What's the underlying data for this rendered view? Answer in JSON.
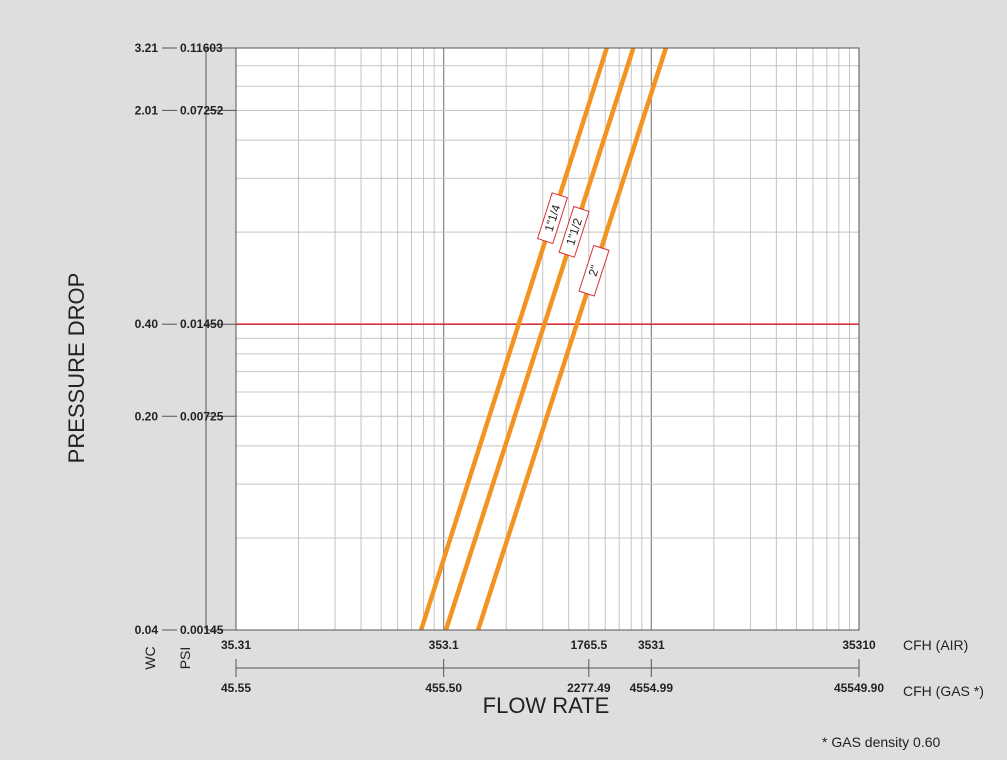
{
  "chart_data": {
    "type": "line",
    "scale": {
      "x": "log",
      "y": "log"
    },
    "grid": true,
    "xlabel": "FLOW RATE",
    "ylabel": "PRESSURE DROP",
    "x_air_unit": "CFH (AIR)",
    "x_gas_unit": "CFH (GAS *)",
    "y_wc_unit": "WC",
    "y_psi_unit": "PSI",
    "note": "* GAS density 0.60",
    "xlim_air": [
      35.31,
      35310
    ],
    "ylim_psi": [
      0.00145,
      0.11603
    ],
    "x_air_ticks": [
      {
        "value": 35.31,
        "label": "35.31"
      },
      {
        "value": 353.1,
        "label": "353.1"
      },
      {
        "value": 1765.5,
        "label": "1765.5"
      },
      {
        "value": 3531,
        "label": "3531"
      },
      {
        "value": 35310,
        "label": "35310"
      }
    ],
    "x_gas_ticks": [
      {
        "value": 45.55,
        "label": "45.55"
      },
      {
        "value": 455.5,
        "label": "455.50"
      },
      {
        "value": 2277.49,
        "label": "2277.49"
      },
      {
        "value": 4554.99,
        "label": "4554.99"
      },
      {
        "value": 45549.9,
        "label": "45549.90"
      }
    ],
    "y_ticks": [
      {
        "psi": 0.00145,
        "psi_label": "0.00145",
        "wc_label": "0.04"
      },
      {
        "psi": 0.00725,
        "psi_label": "0.00725",
        "wc_label": "0.20"
      },
      {
        "psi": 0.0145,
        "psi_label": "0.01450",
        "wc_label": "0.40"
      },
      {
        "psi": 0.07252,
        "psi_label": "0.07252",
        "wc_label": "2.01"
      },
      {
        "psi": 0.11603,
        "psi_label": "0.11603",
        "wc_label": "3.21"
      }
    ],
    "reference_line": {
      "psi": 0.0145,
      "color": "#d6323a"
    },
    "series_color": "#f39322",
    "series": [
      {
        "name": "1\"1/4",
        "x": [
          275,
          2154
        ],
        "y": [
          0.00145,
          0.11603
        ],
        "label_at_x": 1180
      },
      {
        "name": "1\"1/2",
        "x": [
          362,
          2892
        ],
        "y": [
          0.00145,
          0.11603
        ],
        "label_at_x": 1500
      },
      {
        "name": "2\"",
        "x": [
          517,
          4150
        ],
        "y": [
          0.00145,
          0.11603
        ],
        "label_at_x": 1870
      }
    ]
  }
}
